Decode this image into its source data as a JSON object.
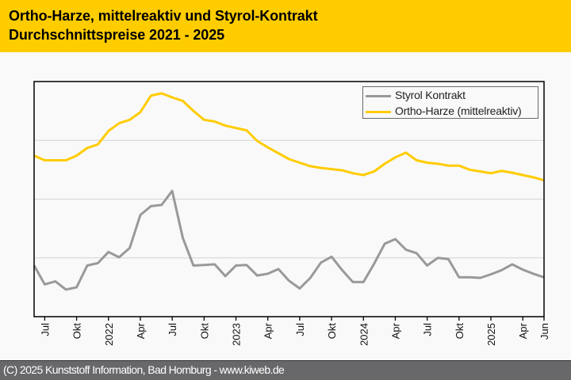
{
  "header": {
    "title_line1": "Ortho-Harze, mittelreaktiv und Styrol-Kontrakt",
    "title_line2": "Durchschnittspreise 2021 - 2025"
  },
  "footer": {
    "text": "(C) 2025 Kunststoff Information, Bad Homburg - www.kiweb.de"
  },
  "colors": {
    "header_bg": "#ffcc00",
    "footer_bg": "#68686b",
    "styrol": "#999999",
    "ortho": "#ffcc00",
    "grid": "#d4d4d4"
  },
  "chart_data": {
    "type": "line",
    "title": "Ortho-Harze, mittelreaktiv und Styrol-Kontrakt — Durchschnittspreise 2021 - 2025",
    "xlabel": "",
    "ylabel": "",
    "y_units": "relative index (y axis unlabeled)",
    "ylim": [
      0,
      400
    ],
    "y_gridlines": [
      100,
      200,
      300
    ],
    "grid": true,
    "legend_position": "top-right",
    "x": [
      "2021-06",
      "2021-07",
      "2021-08",
      "2021-09",
      "2021-10",
      "2021-11",
      "2021-12",
      "2022-01",
      "2022-02",
      "2022-03",
      "2022-04",
      "2022-05",
      "2022-06",
      "2022-07",
      "2022-08",
      "2022-09",
      "2022-10",
      "2022-11",
      "2022-12",
      "2023-01",
      "2023-02",
      "2023-03",
      "2023-04",
      "2023-05",
      "2023-06",
      "2023-07",
      "2023-08",
      "2023-09",
      "2023-10",
      "2023-11",
      "2023-12",
      "2024-01",
      "2024-02",
      "2024-03",
      "2024-04",
      "2024-05",
      "2024-06",
      "2024-07",
      "2024-08",
      "2024-09",
      "2024-10",
      "2024-11",
      "2024-12",
      "2025-01",
      "2025-02",
      "2025-03",
      "2025-04",
      "2025-05",
      "2025-06"
    ],
    "x_ticks": [
      {
        "index": 1,
        "label": "Jul"
      },
      {
        "index": 4,
        "label": "Okt"
      },
      {
        "index": 7,
        "label": "2022"
      },
      {
        "index": 10,
        "label": "Apr"
      },
      {
        "index": 13,
        "label": "Jul"
      },
      {
        "index": 16,
        "label": "Okt"
      },
      {
        "index": 19,
        "label": "2023"
      },
      {
        "index": 22,
        "label": "Apr"
      },
      {
        "index": 25,
        "label": "Jul"
      },
      {
        "index": 28,
        "label": "Okt"
      },
      {
        "index": 31,
        "label": "2024"
      },
      {
        "index": 34,
        "label": "Apr"
      },
      {
        "index": 37,
        "label": "Jul"
      },
      {
        "index": 40,
        "label": "Okt"
      },
      {
        "index": 43,
        "label": "2025"
      },
      {
        "index": 46,
        "label": "Apr"
      },
      {
        "index": 48,
        "label": "Jun"
      }
    ],
    "series": [
      {
        "name": "Styrol Kontrakt",
        "color": "#999999",
        "values": [
          87,
          55,
          60,
          46,
          50,
          87,
          91,
          110,
          101,
          117,
          173,
          188,
          190,
          214,
          134,
          87,
          88,
          89,
          69,
          87,
          88,
          70,
          73,
          81,
          61,
          48,
          66,
          92,
          102,
          79,
          59,
          59,
          90,
          124,
          132,
          114,
          108,
          87,
          100,
          98,
          67,
          67,
          66,
          72,
          79,
          89,
          80,
          73,
          67
        ]
      },
      {
        "name": "Ortho-Harze (mittelreaktiv)",
        "color": "#ffcc00",
        "values": [
          274,
          266,
          266,
          266,
          274,
          287,
          293,
          316,
          329,
          335,
          348,
          376,
          380,
          373,
          367,
          350,
          335,
          332,
          325,
          321,
          317,
          299,
          288,
          278,
          268,
          262,
          256,
          253,
          251,
          249,
          244,
          241,
          247,
          260,
          271,
          279,
          266,
          262,
          260,
          257,
          257,
          250,
          247,
          244,
          248,
          245,
          241,
          237,
          232
        ]
      }
    ]
  }
}
